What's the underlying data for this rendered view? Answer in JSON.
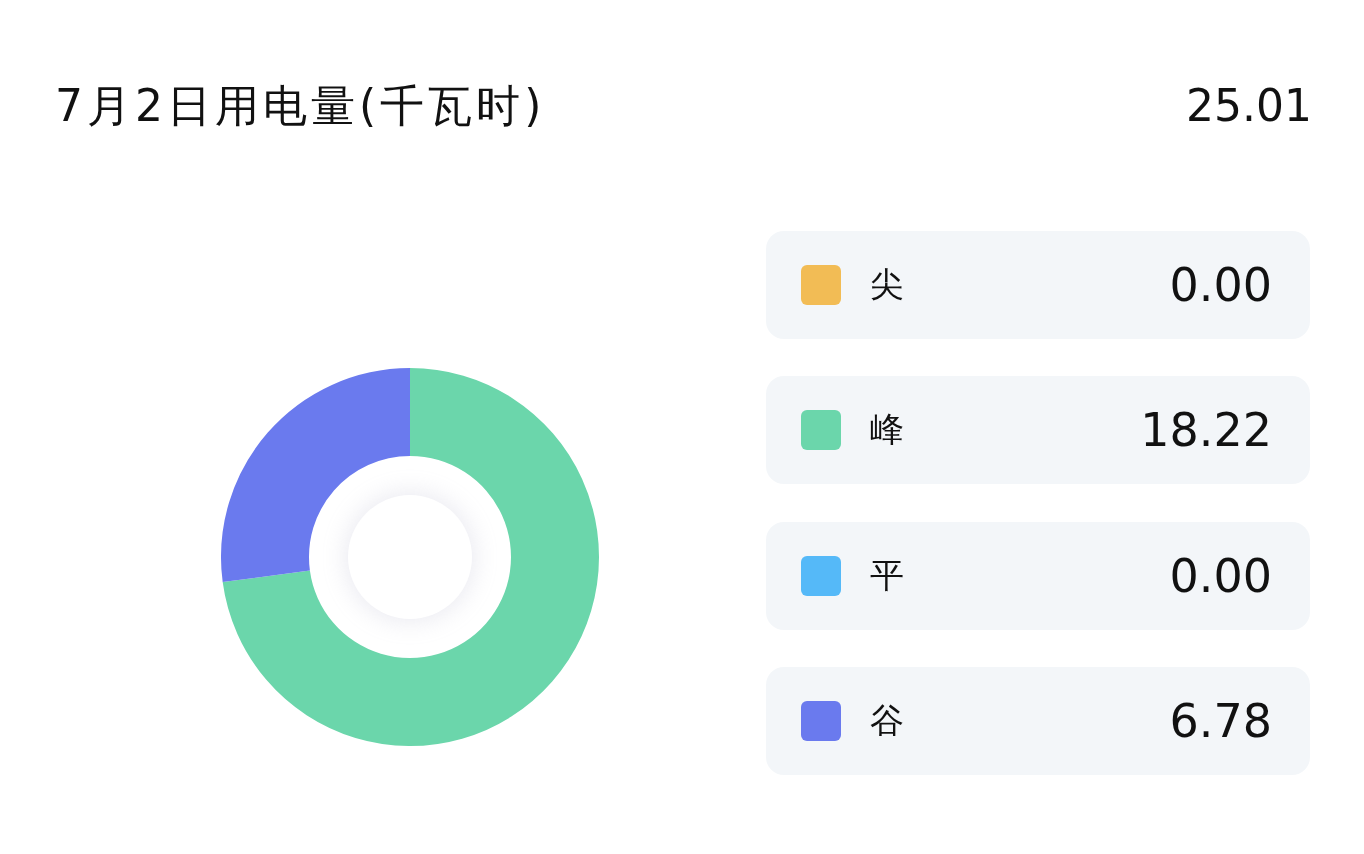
{
  "chart_data": {
    "type": "donut",
    "title": "7月2日用电量(千瓦时)",
    "annotations": [
      "25.01"
    ],
    "categories": [
      "尖",
      "峰",
      "平",
      "谷"
    ],
    "values": [
      0,
      18.22,
      0,
      6.78
    ],
    "colors": [
      "#f2bc55",
      "#6bd6ab",
      "#55b9f8",
      "#6a7aee"
    ],
    "value_labels": [
      "0.00",
      "18.22",
      "0.00",
      "6.78"
    ],
    "legend": "right"
  }
}
